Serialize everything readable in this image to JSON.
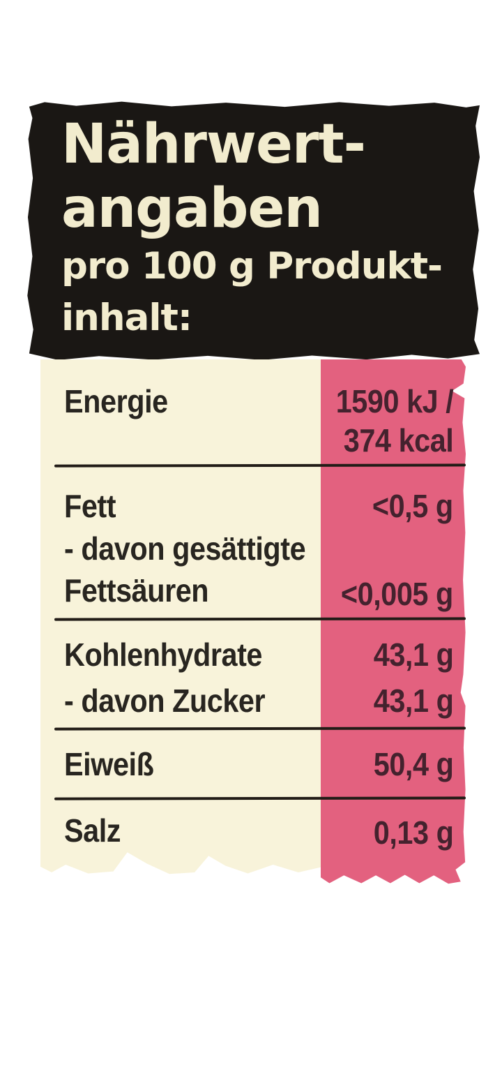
{
  "header": {
    "title": "Nährwert-\nangaben",
    "subtitle": "pro 100 g Produkt-\ninhalt:"
  },
  "table": {
    "rows": [
      {
        "label": "Energie",
        "value": "1590 kJ /\n374 kcal"
      },
      {
        "label": "Fett",
        "value": "<0,5 g"
      },
      {
        "label": "- davon gesättigte",
        "value": ""
      },
      {
        "label": "Fettsäuren",
        "value": "<0,005 g"
      },
      {
        "label": "Kohlenhydrate",
        "value": "43,1 g"
      },
      {
        "label": "- davon Zucker",
        "value": "43,1 g"
      },
      {
        "label": "Eiweiß",
        "value": "50,4 g"
      },
      {
        "label": "Salz",
        "value": "0,13 g"
      }
    ]
  },
  "colors": {
    "page_bg": "#ffffff",
    "header_bg": "#1a1714",
    "header_text": "#f2ecce",
    "left_col_bg": "#f8f3da",
    "right_col_bg": "#e3617f",
    "label_ink": "#282520",
    "value_ink": "#44222e",
    "divider": "#221c17"
  }
}
